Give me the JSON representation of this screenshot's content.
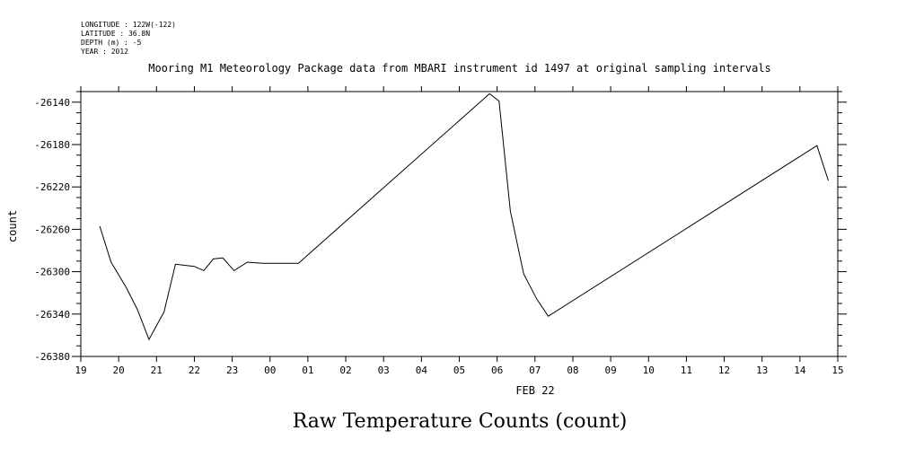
{
  "header": {
    "meta_lines": [
      "LONGITUDE : 122W(-122)",
      "LATITUDE : 36.8N",
      "DEPTH (m) : -5",
      "YEAR : 2012"
    ]
  },
  "footer": {
    "caption": "Raw Temperature Counts (count)"
  },
  "chart_data": {
    "type": "line",
    "title": "Mooring M1 Meteorology Package data from MBARI instrument id 1497 at original sampling intervals",
    "xlabel": "FEB 22",
    "ylabel": "count",
    "x_unit": "hours since 19:00 (Feb 21, 2012)",
    "xlim": [
      0,
      20
    ],
    "ylim": [
      -26380,
      -26130
    ],
    "x_tick_labels": [
      "19",
      "20",
      "21",
      "22",
      "23",
      "00",
      "01",
      "02",
      "03",
      "04",
      "05",
      "06",
      "07",
      "08",
      "09",
      "10",
      "11",
      "12",
      "13",
      "14",
      "15"
    ],
    "y_ticks": [
      -26140,
      -26180,
      -26220,
      -26260,
      -26300,
      -26340,
      -26380
    ],
    "grid": false,
    "series": [
      {
        "name": "",
        "x": [
          0.5,
          0.8,
          1.2,
          1.5,
          1.8,
          2.2,
          2.5,
          3.0,
          3.25,
          3.5,
          3.75,
          4.05,
          4.4,
          4.8,
          5.75,
          10.8,
          11.05,
          11.35,
          11.7,
          12.05,
          12.35,
          19.45,
          19.75
        ],
        "y": [
          -26257,
          -26291,
          -26315,
          -26336,
          -26364,
          -26338,
          -26293,
          -26295,
          -26299,
          -26288,
          -26287,
          -26299,
          -26291,
          -26292,
          -26292,
          -26132,
          -26139,
          -26243,
          -26302,
          -26326,
          -26342,
          -26181,
          -26214
        ]
      }
    ]
  }
}
